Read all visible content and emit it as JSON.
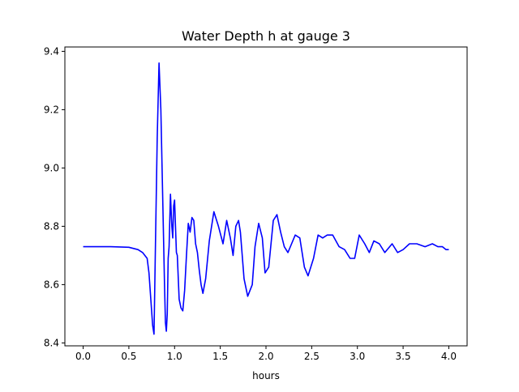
{
  "chart_data": {
    "type": "line",
    "title": "Water Depth h at gauge 3",
    "xlabel": "hours",
    "ylabel": "",
    "xlim": [
      -0.2,
      4.2
    ],
    "ylim": [
      8.39,
      9.415
    ],
    "xticks": [
      0.0,
      0.5,
      1.0,
      1.5,
      2.0,
      2.5,
      3.0,
      3.5,
      4.0
    ],
    "xtick_labels": [
      "0.0",
      "0.5",
      "1.0",
      "1.5",
      "2.0",
      "2.5",
      "3.0",
      "3.5",
      "4.0"
    ],
    "yticks": [
      8.4,
      8.6,
      8.8,
      9.0,
      9.2,
      9.4
    ],
    "ytick_labels": [
      "8.4",
      "8.6",
      "8.8",
      "9.0",
      "9.2",
      "9.4"
    ],
    "grid": false,
    "series": [
      {
        "color": "#0000ff",
        "x": [
          0.0,
          0.3,
          0.5,
          0.6,
          0.65,
          0.7,
          0.72,
          0.74,
          0.76,
          0.775,
          0.79,
          0.81,
          0.83,
          0.85,
          0.87,
          0.89,
          0.9,
          0.91,
          0.92,
          0.93,
          0.94,
          0.955,
          0.97,
          0.98,
          0.99,
          1.0,
          1.01,
          1.02,
          1.03,
          1.05,
          1.07,
          1.09,
          1.11,
          1.13,
          1.15,
          1.17,
          1.19,
          1.21,
          1.23,
          1.25,
          1.27,
          1.29,
          1.31,
          1.34,
          1.38,
          1.43,
          1.48,
          1.53,
          1.57,
          1.61,
          1.64,
          1.67,
          1.7,
          1.72,
          1.76,
          1.8,
          1.85,
          1.88,
          1.92,
          1.96,
          1.99,
          2.03,
          2.08,
          2.12,
          2.16,
          2.2,
          2.24,
          2.28,
          2.32,
          2.37,
          2.42,
          2.46,
          2.52,
          2.57,
          2.62,
          2.67,
          2.73,
          2.8,
          2.86,
          2.92,
          2.97,
          3.02,
          3.08,
          3.13,
          3.18,
          3.24,
          3.3,
          3.38,
          3.44,
          3.5,
          3.57,
          3.65,
          3.74,
          3.82,
          3.88,
          3.93,
          3.97,
          4.0
        ],
        "y": [
          8.73,
          8.73,
          8.728,
          8.72,
          8.71,
          8.69,
          8.64,
          8.55,
          8.46,
          8.43,
          8.72,
          9.1,
          9.36,
          9.2,
          8.9,
          8.6,
          8.47,
          8.44,
          8.5,
          8.69,
          8.73,
          8.91,
          8.8,
          8.76,
          8.87,
          8.89,
          8.8,
          8.71,
          8.7,
          8.55,
          8.52,
          8.51,
          8.58,
          8.7,
          8.81,
          8.78,
          8.83,
          8.82,
          8.74,
          8.71,
          8.65,
          8.6,
          8.57,
          8.62,
          8.75,
          8.85,
          8.8,
          8.74,
          8.82,
          8.76,
          8.7,
          8.8,
          8.82,
          8.78,
          8.62,
          8.56,
          8.6,
          8.73,
          8.81,
          8.76,
          8.64,
          8.66,
          8.82,
          8.84,
          8.78,
          8.73,
          8.71,
          8.74,
          8.77,
          8.76,
          8.66,
          8.63,
          8.69,
          8.77,
          8.76,
          8.77,
          8.77,
          8.73,
          8.72,
          8.69,
          8.69,
          8.77,
          8.74,
          8.71,
          8.75,
          8.74,
          8.71,
          8.74,
          8.71,
          8.72,
          8.74,
          8.74,
          8.73,
          8.74,
          8.73,
          8.73,
          8.72,
          8.72
        ]
      }
    ]
  }
}
